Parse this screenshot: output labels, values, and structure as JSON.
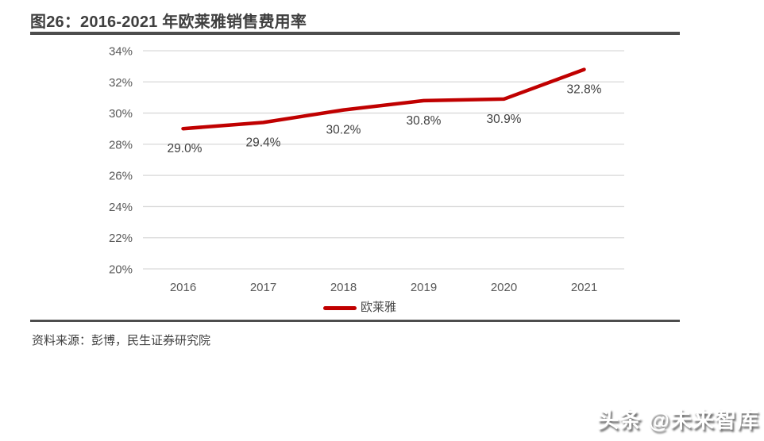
{
  "figure": {
    "title": "图26：2016-2021 年欧莱雅销售费用率",
    "source": "资料来源：彭博，民生证券研究院",
    "watermark": "头条 @未来智库"
  },
  "chart_data": {
    "type": "line",
    "title": "2016-2021 年欧莱雅销售费用率",
    "categories": [
      "2016",
      "2017",
      "2018",
      "2019",
      "2020",
      "2021"
    ],
    "series": [
      {
        "name": "欧莱雅",
        "values": [
          29.0,
          29.4,
          30.2,
          30.8,
          30.9,
          32.8
        ],
        "color": "#c00000"
      }
    ],
    "data_labels": [
      "29.0%",
      "29.4%",
      "30.2%",
      "30.8%",
      "30.9%",
      "32.8%"
    ],
    "ylim": [
      20,
      34
    ],
    "ytick_step": 2,
    "ytick_labels": [
      "20%",
      "22%",
      "24%",
      "26%",
      "28%",
      "30%",
      "32%",
      "34%"
    ],
    "grid": true,
    "legend": {
      "position": "bottom",
      "entries": [
        "欧莱雅"
      ]
    },
    "colors": {
      "gridline": "#d9d9d9",
      "axis_text": "#595959",
      "data_label_text": "#404040"
    }
  }
}
